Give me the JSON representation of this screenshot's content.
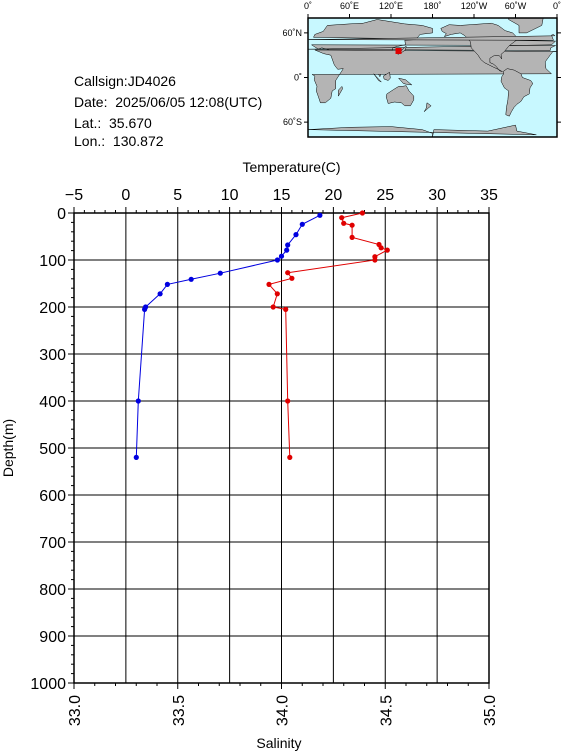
{
  "info": {
    "callsign": "Callsign:JD4026",
    "date": "Date:  2025/06/05 12:08(UTC)",
    "lat": "Lat.:  35.670",
    "lon": "Lon.:  130.872"
  },
  "map": {
    "lon_labels": [
      "0˚",
      "60˚E",
      "120˚E",
      "180˚",
      "120˚W",
      "60˚W",
      "0˚"
    ],
    "lat_labels": [
      "60˚N",
      "0˚",
      "60˚S"
    ],
    "station_marker": {
      "lon": 130.872,
      "lat": 35.67,
      "color": "#e00000"
    },
    "ocean_color": "#c8f8ff",
    "land_color": "#b4b4b4"
  },
  "chart_data": {
    "type": "scatter",
    "title": "",
    "ylabel": "Depth(m)",
    "ylim": [
      0,
      1000
    ],
    "y_ticks": [
      "0",
      "100",
      "200",
      "300",
      "400",
      "500",
      "600",
      "700",
      "800",
      "900",
      "1000"
    ],
    "top_axis": {
      "label": "Temperature(C)",
      "range": [
        -5,
        35
      ],
      "ticks": [
        "−5",
        "0",
        "5",
        "10",
        "15",
        "20",
        "25",
        "30",
        "35"
      ]
    },
    "bottom_axis": {
      "label": "Salinity",
      "range": [
        33.0,
        35.0
      ],
      "ticks": [
        "33.0",
        "33.5",
        "34.0",
        "34.5",
        "35.0"
      ]
    },
    "grid": true,
    "series": [
      {
        "color": "#0000e0",
        "axis": "top",
        "points": [
          [
            18.7,
            5
          ],
          [
            17.0,
            24
          ],
          [
            16.4,
            46
          ],
          [
            15.6,
            68
          ],
          [
            15.5,
            79
          ],
          [
            15.0,
            92
          ],
          [
            14.6,
            100
          ],
          [
            9.1,
            128
          ],
          [
            6.3,
            141
          ],
          [
            4.0,
            152
          ],
          [
            3.3,
            172
          ],
          [
            1.9,
            200
          ],
          [
            1.8,
            205
          ],
          [
            1.2,
            400
          ],
          [
            1.0,
            520
          ]
        ]
      },
      {
        "color": "#e00000",
        "axis": "bottom",
        "points": [
          [
            34.39,
            0
          ],
          [
            34.29,
            10
          ],
          [
            34.3,
            22
          ],
          [
            34.34,
            26
          ],
          [
            34.34,
            52
          ],
          [
            34.47,
            67
          ],
          [
            34.48,
            74
          ],
          [
            34.51,
            79
          ],
          [
            34.45,
            93
          ],
          [
            34.45,
            100
          ],
          [
            34.03,
            127
          ],
          [
            34.05,
            139
          ],
          [
            33.94,
            152
          ],
          [
            33.98,
            172
          ],
          [
            33.96,
            200
          ],
          [
            34.02,
            205
          ],
          [
            34.03,
            400
          ],
          [
            34.04,
            520
          ]
        ]
      }
    ]
  }
}
